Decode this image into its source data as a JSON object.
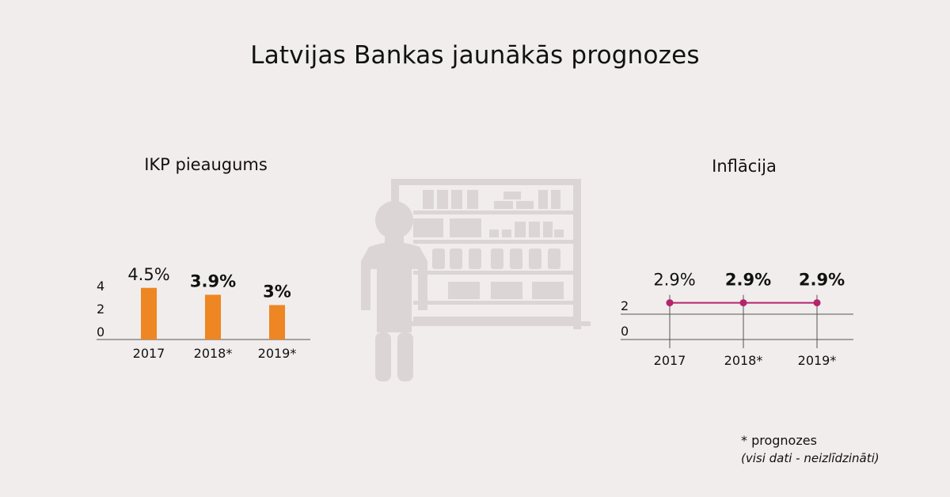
{
  "title": "Latvijas Bankas jaunākās prognozes",
  "colors": {
    "background": "#f1edec",
    "gdp_bar": "#ed8623",
    "inflation_line": "#b5246b",
    "illustration": "#dbd6d5",
    "axis": "#555555"
  },
  "illustration": "shopkeeper-at-shelves-icon",
  "footnote": {
    "line1": "* prognozes",
    "line2": "(visi dati - neizlīdzināti)"
  },
  "chart_data": [
    {
      "type": "bar",
      "title": "IKP pieaugums",
      "categories": [
        "2017",
        "2018*",
        "2019*"
      ],
      "values": [
        4.5,
        3.9,
        3.0
      ],
      "data_labels": [
        "4.5%",
        "3.9%",
        "3%"
      ],
      "label_bold": [
        false,
        true,
        true
      ],
      "ylim": [
        0,
        4.8
      ],
      "yticks": [
        "0",
        "2",
        "4"
      ],
      "ytick_values": [
        0,
        2,
        4
      ],
      "grid": false,
      "legend": "none",
      "color": "#ed8623"
    },
    {
      "type": "line",
      "title": "Inflācija",
      "categories": [
        "2017",
        "2018*",
        "2019*"
      ],
      "values": [
        2.9,
        2.9,
        2.9
      ],
      "data_labels": [
        "2.9%",
        "2.9%",
        "2.9%"
      ],
      "label_bold": [
        false,
        true,
        true
      ],
      "ylim": [
        0,
        3.2
      ],
      "yticks": [
        "0",
        "2"
      ],
      "ytick_values": [
        0,
        2
      ],
      "grid": true,
      "legend": "none",
      "color": "#b5246b"
    }
  ]
}
